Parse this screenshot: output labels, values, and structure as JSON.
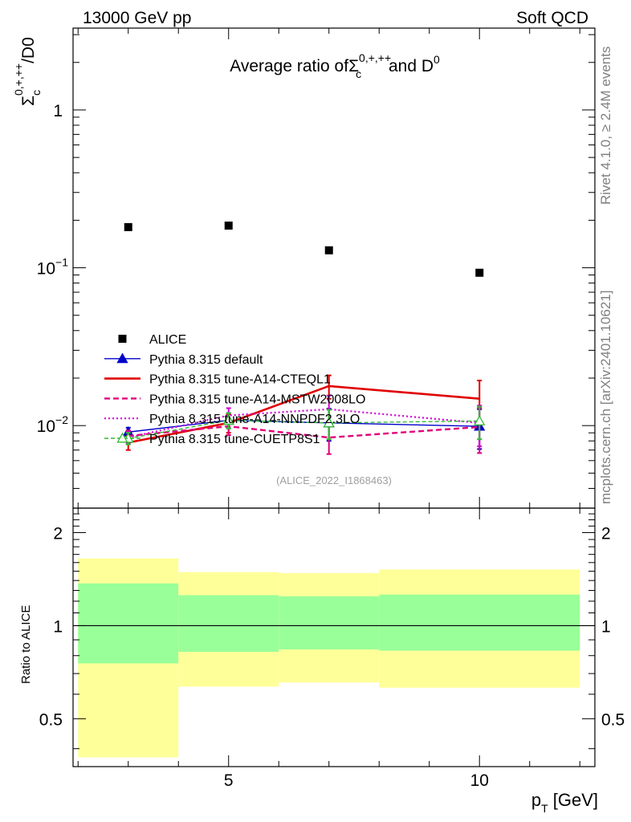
{
  "header": {
    "left_label": "13000 GeV pp",
    "right_label": "Soft QCD"
  },
  "side_labels": {
    "rivet": "Rivet 4.1.0, ≥ 2.4M events",
    "mcplots": "mcplots.cern.ch [arXiv:2401.10621]"
  },
  "colors": {
    "alice": "#000000",
    "default": "#0000cc",
    "cteql1": "#e00000",
    "mstw": "#e0007a",
    "nnpdf": "#d400d4",
    "cuetp8s1": "#33bb33",
    "band_outer": "#ffff99",
    "band_inner": "#99ff99"
  },
  "chart_data": [
    {
      "type": "scatter",
      "title_prefix": "Average ratio of",
      "title_sigma": "Σ",
      "title_sub": "c",
      "title_sup": "0,+,++",
      "title_and": " and D",
      "title_d_sup": "0",
      "ylabel_sigma": "Σ",
      "ylabel_sub": "c",
      "ylabel_sup": "0,+,++",
      "ylabel_suffix": "/D0",
      "yscale": "log",
      "xlim": [
        1.9,
        12.3
      ],
      "ylim": [
        0.003,
        3.3
      ],
      "ytick_labels": [
        {
          "value": 1,
          "base": "1",
          "exp": ""
        },
        {
          "value": 0.1,
          "base": "10",
          "exp": "−1"
        },
        {
          "value": 0.01,
          "base": "10",
          "exp": "−2"
        }
      ],
      "reference_label": "(ALICE_2022_I1868463)",
      "legend_position": "left",
      "series": [
        {
          "name": "ALICE",
          "key": "alice",
          "style": "square-marker",
          "x": [
            3,
            5,
            7,
            10
          ],
          "y": [
            0.181,
            0.185,
            0.129,
            0.093
          ]
        },
        {
          "name": "Pythia 8.315 default",
          "key": "default",
          "style": "solid-triangle",
          "x": [
            3,
            5,
            7,
            10
          ],
          "y": [
            0.0091,
            0.0108,
            0.0104,
            0.0099
          ],
          "err": [
            0.0006,
            0.0012,
            0.0024,
            0.0028
          ]
        },
        {
          "name": "Pythia 8.315 tune-A14-CTEQL1",
          "key": "cteql1",
          "style": "solid-thick",
          "x": [
            3,
            5,
            7,
            10
          ],
          "y": [
            0.0078,
            0.0104,
            0.0178,
            0.0148
          ],
          "err": [
            0.0008,
            0.0014,
            0.003,
            0.0045
          ]
        },
        {
          "name": "Pythia 8.315 tune-A14-MSTW2008LO",
          "key": "mstw",
          "style": "dashed",
          "x": [
            3,
            5,
            7,
            10
          ],
          "y": [
            0.0086,
            0.0099,
            0.0084,
            0.0098
          ],
          "err": [
            0.0007,
            0.0012,
            0.0018,
            0.0031
          ]
        },
        {
          "name": "Pythia 8.315 tune-A14-NNPDF2.3LO",
          "key": "nnpdf",
          "style": "dotted",
          "x": [
            3,
            5,
            7,
            10
          ],
          "y": [
            0.0084,
            0.0116,
            0.0127,
            0.0104
          ],
          "err": [
            0.0007,
            0.0013,
            0.0028,
            0.003
          ]
        },
        {
          "name": "Pythia 8.315 tune-CUETP8S1",
          "key": "cuetp8s1",
          "style": "dashed-open-triangle",
          "x": [
            3,
            5,
            7,
            10
          ],
          "y": [
            0.0083,
            0.0108,
            0.0104,
            0.0107
          ],
          "err": [
            0.0007,
            0.0012,
            0.0022,
            0.0025
          ]
        }
      ]
    },
    {
      "type": "area",
      "ylabel": "Ratio to ALICE",
      "xlabel_base": "p",
      "xlabel_sub": "T",
      "xlabel_unit": " [GeV]",
      "xlim": [
        1.9,
        12.3
      ],
      "ylim": [
        0.35,
        2.4
      ],
      "ytick_labels": [
        "2",
        "1",
        "0.5"
      ],
      "ytick_values": [
        2,
        1,
        0.5
      ],
      "xtick_labels": [
        "5",
        "10"
      ],
      "xtick_values": [
        5,
        10
      ],
      "reference_line": 1,
      "bands": [
        {
          "x_low": 2,
          "x_high": 4,
          "outer_low": 0.375,
          "outer_high": 1.65,
          "inner_low": 0.755,
          "inner_high": 1.37
        },
        {
          "x_low": 4,
          "x_high": 6,
          "outer_low": 0.635,
          "outer_high": 1.49,
          "inner_low": 0.823,
          "inner_high": 1.255
        },
        {
          "x_low": 6,
          "x_high": 8,
          "outer_low": 0.655,
          "outer_high": 1.48,
          "inner_low": 0.838,
          "inner_high": 1.245
        },
        {
          "x_low": 8,
          "x_high": 12,
          "outer_low": 0.63,
          "outer_high": 1.52,
          "inner_low": 0.83,
          "inner_high": 1.26
        }
      ]
    }
  ]
}
